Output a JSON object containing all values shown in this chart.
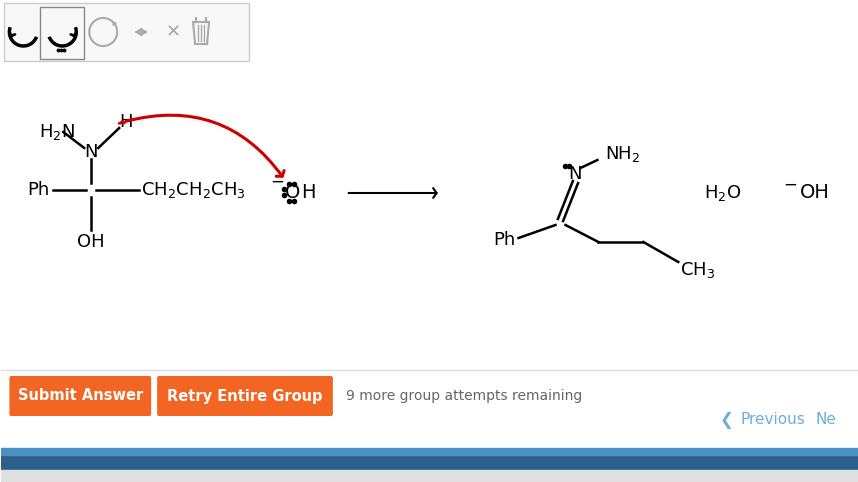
{
  "bg_color": "#ffffff",
  "toolbar_color": "#f8f8f8",
  "toolbar_border": "#cccccc",
  "button_color": "#f26522",
  "button_text_color": "#ffffff",
  "arrow_color": "#cc0000",
  "text_color": "#000000",
  "gray_text": "#aaaaaa",
  "blue_text": "#6baed6",
  "submit_text": "Submit Answer",
  "retry_text": "Retry Entire Group",
  "attempts_text": "9 more group attempts remaining",
  "previous_text": "Previous",
  "next_text": "Ne"
}
